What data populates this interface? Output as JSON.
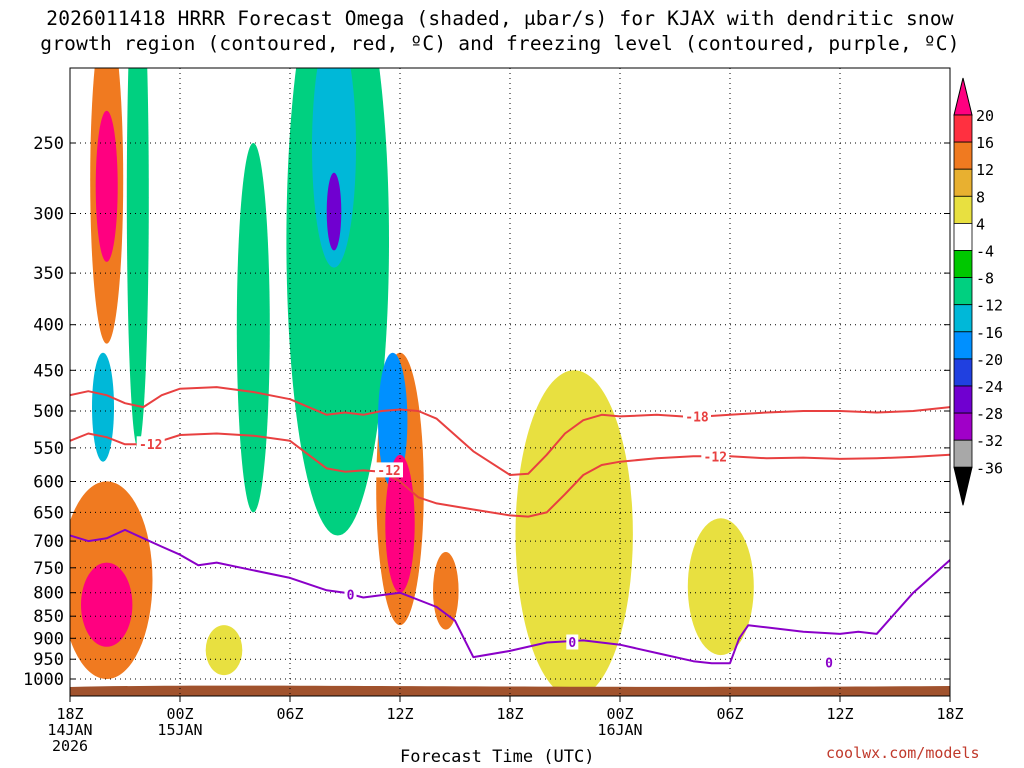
{
  "title": {
    "line1": "2026011418 HRRR Forecast Omega (shaded, μbar/s) for KJAX with dendritic snow",
    "line2": "growth region (contoured, red, ºC) and freezing level (contoured, purple, ºC)"
  },
  "credit": "coolwx.com/models",
  "chart_data": {
    "type": "heatmap",
    "xlabel": "Forecast Time (UTC)",
    "ylabel": "Pressure (mb)",
    "xlim_hours": [
      0,
      48
    ],
    "ylim_mb": [
      1050,
      200
    ],
    "x_ticks": [
      {
        "h": 0,
        "l1": "18Z",
        "l2": "14JAN",
        "l3": "2026"
      },
      {
        "h": 6,
        "l1": "00Z",
        "l2": "15JAN",
        "l3": ""
      },
      {
        "h": 12,
        "l1": "06Z",
        "l2": "",
        "l3": ""
      },
      {
        "h": 18,
        "l1": "12Z",
        "l2": "",
        "l3": ""
      },
      {
        "h": 24,
        "l1": "18Z",
        "l2": "",
        "l3": ""
      },
      {
        "h": 30,
        "l1": "00Z",
        "l2": "16JAN",
        "l3": ""
      },
      {
        "h": 36,
        "l1": "06Z",
        "l2": "",
        "l3": ""
      },
      {
        "h": 42,
        "l1": "12Z",
        "l2": "",
        "l3": ""
      },
      {
        "h": 48,
        "l1": "18Z",
        "l2": "",
        "l3": ""
      }
    ],
    "y_ticks": [
      250,
      300,
      350,
      400,
      450,
      500,
      550,
      600,
      650,
      700,
      750,
      800,
      850,
      900,
      950,
      1000
    ],
    "colorbar": {
      "labels": [
        "20",
        "16",
        "12",
        "8",
        "4",
        "-4",
        "-8",
        "-12",
        "-16",
        "-20",
        "-24",
        "-28",
        "-32",
        "-36"
      ],
      "colors": [
        "#ff0080",
        "#ff3040",
        "#f07a20",
        "#e8b030",
        "#e8e040",
        "#ffffff",
        "#00c800",
        "#00d080",
        "#00b8d8",
        "#0090ff",
        "#2040e0",
        "#7000d0",
        "#a000c8",
        "#a8a8a8",
        "#000000"
      ]
    },
    "omega_features": [
      {
        "t": 2.0,
        "p": 285,
        "dt": 0.6,
        "dp": 55,
        "value": 20
      },
      {
        "t": 2.0,
        "p": 300,
        "dt": 0.9,
        "dp": 120,
        "value": 12
      },
      {
        "t": 2.0,
        "p": 830,
        "dt": 1.4,
        "dp": 90,
        "value": 20
      },
      {
        "t": 2.0,
        "p": 800,
        "dt": 2.5,
        "dp": 200,
        "value": 12
      },
      {
        "t": 1.8,
        "p": 500,
        "dt": 0.6,
        "dp": 70,
        "value": -12
      },
      {
        "t": 3.7,
        "p": 350,
        "dt": 0.6,
        "dp": 200,
        "value": -8
      },
      {
        "t": 8.4,
        "p": 930,
        "dt": 1.0,
        "dp": 60,
        "value": 4
      },
      {
        "t": 10.0,
        "p": 450,
        "dt": 0.9,
        "dp": 200,
        "value": -8
      },
      {
        "t": 14.4,
        "p": 265,
        "dt": 1.2,
        "dp": 80,
        "value": -12
      },
      {
        "t": 14.4,
        "p": 300,
        "dt": 0.4,
        "dp": 30,
        "value": -24
      },
      {
        "t": 14.6,
        "p": 390,
        "dt": 2.8,
        "dp": 300,
        "value": -8
      },
      {
        "t": 18.0,
        "p": 680,
        "dt": 0.8,
        "dp": 120,
        "value": 20
      },
      {
        "t": 18.0,
        "p": 650,
        "dt": 1.3,
        "dp": 220,
        "value": 12
      },
      {
        "t": 17.6,
        "p": 520,
        "dt": 0.8,
        "dp": 90,
        "value": -16
      },
      {
        "t": 20.5,
        "p": 800,
        "dt": 0.7,
        "dp": 80,
        "value": 12
      },
      {
        "t": 27.5,
        "p": 750,
        "dt": 3.2,
        "dp": 300,
        "value": 4
      },
      {
        "t": 35.5,
        "p": 800,
        "dt": 1.8,
        "dp": 140,
        "value": 4
      }
    ],
    "series": [
      {
        "name": "-18 (dendritic top)",
        "color": "#e84040",
        "t": [
          0,
          1,
          2,
          3,
          4,
          5,
          6,
          8,
          10,
          12,
          14,
          15,
          16,
          17,
          18,
          19,
          20,
          22,
          24,
          25,
          26,
          27,
          28,
          29,
          30,
          32,
          34,
          36,
          38,
          40,
          42,
          44,
          46,
          48
        ],
        "p": [
          480,
          475,
          480,
          490,
          495,
          480,
          472,
          470,
          476,
          485,
          505,
          502,
          505,
          500,
          498,
          500,
          510,
          555,
          590,
          588,
          560,
          530,
          512,
          505,
          507,
          505,
          508,
          505,
          502,
          500,
          500,
          502,
          500,
          495
        ]
      },
      {
        "name": "-12 (dendritic base)",
        "color": "#e84040",
        "t": [
          0,
          1,
          2,
          3,
          4,
          5,
          6,
          8,
          10,
          12,
          14,
          15,
          16,
          17,
          18,
          19,
          20,
          22,
          24,
          25,
          26,
          27,
          28,
          29,
          30,
          32,
          34,
          36,
          38,
          40,
          42,
          44,
          46,
          48
        ],
        "p": [
          540,
          530,
          535,
          545,
          545,
          540,
          532,
          530,
          533,
          540,
          580,
          585,
          583,
          585,
          600,
          625,
          635,
          645,
          655,
          657,
          650,
          620,
          590,
          575,
          570,
          565,
          562,
          562,
          565,
          564,
          566,
          565,
          563,
          560
        ]
      },
      {
        "name": "0 (freezing level)",
        "color": "#8a00c8",
        "t": [
          0,
          1,
          2,
          3,
          4,
          5,
          6,
          7,
          8,
          10,
          12,
          14,
          15,
          16,
          17,
          18,
          20,
          21,
          22,
          24,
          26,
          28,
          30,
          32,
          34,
          35,
          36,
          36.5,
          37,
          38,
          40,
          42,
          43,
          44,
          46,
          48
        ],
        "p": [
          690,
          700,
          695,
          680,
          695,
          710,
          725,
          745,
          740,
          755,
          770,
          795,
          800,
          810,
          805,
          800,
          830,
          860,
          945,
          930,
          910,
          905,
          915,
          935,
          955,
          960,
          960,
          900,
          870,
          875,
          885,
          890,
          885,
          890,
          800,
          735
        ]
      }
    ],
    "contour_labels": [
      {
        "text": "-12",
        "t": 4.4,
        "p": 545,
        "color": "#e84040"
      },
      {
        "text": "-12",
        "t": 17.4,
        "p": 583,
        "color": "#e84040"
      },
      {
        "text": "-18",
        "t": 34.2,
        "p": 508,
        "color": "#e84040"
      },
      {
        "text": "-12",
        "t": 35.2,
        "p": 563,
        "color": "#e84040"
      },
      {
        "text": "0",
        "t": 15.3,
        "p": 805,
        "color": "#8a00c8"
      },
      {
        "text": "0",
        "t": 27.4,
        "p": 910,
        "color": "#8a00c8"
      },
      {
        "text": "0",
        "t": 41.4,
        "p": 960,
        "color": "#8a00c8"
      }
    ],
    "terrain": {
      "color": "#a0522d",
      "pressure_mb": 1013
    }
  }
}
